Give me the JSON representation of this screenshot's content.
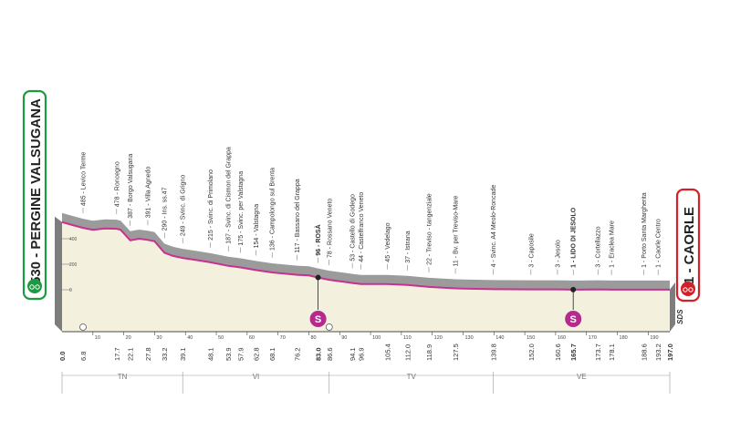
{
  "chart_data": {
    "type": "area",
    "start": {
      "label": "530 - PERGINE VALSUGANA",
      "km": 0.0,
      "alt": 530
    },
    "finish": {
      "label": "1 - CAORLE",
      "km": 197.0,
      "alt": 1
    },
    "x_ticks": [
      10,
      20,
      30,
      40,
      50,
      60,
      70,
      80,
      90,
      100,
      110,
      120,
      130,
      140,
      150,
      160,
      170,
      180,
      190
    ],
    "y_ticks": [
      {
        "value": 0,
        "label": "0"
      },
      {
        "value": 200,
        "label": "200"
      },
      {
        "value": 400,
        "label": "400"
      }
    ],
    "ylim": [
      0,
      650
    ],
    "profile": [
      [
        0,
        530
      ],
      [
        3,
        510
      ],
      [
        6.8,
        485
      ],
      [
        10,
        470
      ],
      [
        14,
        480
      ],
      [
        17.7,
        478
      ],
      [
        19,
        470
      ],
      [
        22.1,
        387
      ],
      [
        25,
        400
      ],
      [
        27.8,
        391
      ],
      [
        30,
        380
      ],
      [
        33.2,
        290
      ],
      [
        36,
        265
      ],
      [
        39.1,
        249
      ],
      [
        43,
        235
      ],
      [
        48.1,
        215
      ],
      [
        53.9,
        187
      ],
      [
        57.9,
        175
      ],
      [
        62.8,
        154
      ],
      [
        68.1,
        136
      ],
      [
        76.2,
        117
      ],
      [
        80,
        112
      ],
      [
        83.0,
        96
      ],
      [
        86.6,
        78
      ],
      [
        94.1,
        53
      ],
      [
        96.9,
        44
      ],
      [
        105.4,
        45
      ],
      [
        112.0,
        37
      ],
      [
        118.9,
        22
      ],
      [
        127.5,
        11
      ],
      [
        139.8,
        4
      ],
      [
        152.0,
        3
      ],
      [
        160.6,
        3
      ],
      [
        165.7,
        1
      ],
      [
        173.7,
        3
      ],
      [
        178.1,
        1
      ],
      [
        188.6,
        1
      ],
      [
        193.2,
        1
      ],
      [
        197.0,
        1
      ]
    ],
    "km_labels": [
      "0.0",
      "6.8",
      "17.7",
      "22.1",
      "27.8",
      "33.2",
      "39.1",
      "48.1",
      "53.9",
      "57.9",
      "62.8",
      "68.1",
      "76.2",
      "83.0",
      "86.6",
      "94.1",
      "96.9",
      "105.4",
      "112.0",
      "118.9",
      "127.5",
      "139.8",
      "152.0",
      "160.6",
      "165.7",
      "173.7",
      "178.1",
      "188.6",
      "193.2",
      "197.0"
    ],
    "places": [
      {
        "km": 6.8,
        "text": "485 - Levico Terme"
      },
      {
        "km": 17.7,
        "text": "478 - Roncegno"
      },
      {
        "km": 22.1,
        "text": "387 - Borgo Valsugana"
      },
      {
        "km": 27.8,
        "text": "391 - Villa Agnedo"
      },
      {
        "km": 33.2,
        "text": "290 - Ins. ss.47"
      },
      {
        "km": 39.1,
        "text": "249 - Svinc. di Grigno"
      },
      {
        "km": 48.1,
        "text": "215 - Svinc. di Primolano"
      },
      {
        "km": 53.9,
        "text": "187 - Svinc. di Cismon del Grappa"
      },
      {
        "km": 57.9,
        "text": "175 - Svinc. per Valstagna"
      },
      {
        "km": 62.8,
        "text": "154 - Valstagna"
      },
      {
        "km": 68.1,
        "text": "136 - Campolongo sul Brenta"
      },
      {
        "km": 76.2,
        "text": "117 - Bassano del Grappa"
      },
      {
        "km": 83.0,
        "text": "96 - ROSÀ",
        "bold": true
      },
      {
        "km": 86.6,
        "text": "78 - Rossano Veneto"
      },
      {
        "km": 94.1,
        "text": "53 - Castello di Godego"
      },
      {
        "km": 96.9,
        "text": "44 - Castelfranco Veneto"
      },
      {
        "km": 105.4,
        "text": "45 - Vedelago"
      },
      {
        "km": 112.0,
        "text": "37 - Istrana"
      },
      {
        "km": 118.9,
        "text": "22 - Treviso - tangenziale"
      },
      {
        "km": 127.5,
        "text": "11 - Bv. per Treviso-Mare"
      },
      {
        "km": 139.8,
        "text": "4 - Svinc. A4 Meolo-Roncade"
      },
      {
        "km": 152.0,
        "text": "3 - Caposile"
      },
      {
        "km": 160.6,
        "text": "3 - Jesolo"
      },
      {
        "km": 165.7,
        "text": "1 - LIDO DI JESOLO",
        "bold": true
      },
      {
        "km": 173.7,
        "text": "3 - Cortellazzo"
      },
      {
        "km": 178.1,
        "text": "1 - Eraclea Mare"
      },
      {
        "km": 188.6,
        "text": "1 - Porto Santa Margherita"
      },
      {
        "km": 193.2,
        "text": "1 - Caorle Centro"
      }
    ],
    "sprints": [
      {
        "km": 83.0,
        "label": "S"
      },
      {
        "km": 165.7,
        "label": "S"
      }
    ],
    "regions": [
      {
        "label": "TN",
        "from": 0.0,
        "to": 39.1
      },
      {
        "label": "VI",
        "from": 39.1,
        "to": 86.6
      },
      {
        "label": "TV",
        "from": 86.6,
        "to": 139.8
      },
      {
        "label": "VE",
        "from": 139.8,
        "to": 197.0
      }
    ],
    "brand": "SDS",
    "colors": {
      "road": "#c9308f",
      "sprint": "#b42b8d",
      "grey_band": "#9b9b9b",
      "fill": "#f3f1de",
      "start_border": "#1c9c42",
      "finish_border": "#d32027"
    }
  }
}
